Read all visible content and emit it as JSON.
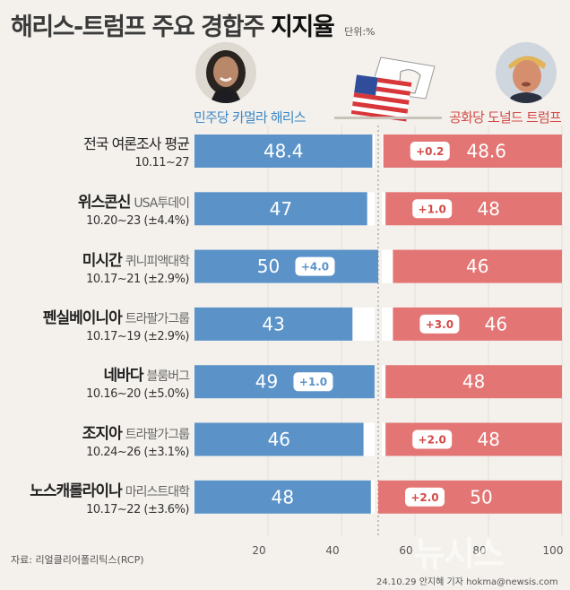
{
  "header": {
    "title_main": "해리스-트럼프 주요 경합주",
    "title_emphasis": "지지율",
    "unit": "단위:%"
  },
  "parties": {
    "left": "민주당 카멀라 해리스",
    "right": "공화당 도널드 트럼프"
  },
  "footer": {
    "source": "자료: 리얼클리어폴리틱스(RCP)",
    "credit": "24.10.29 안지혜 기자 hokma@newsis.com",
    "watermark": "뉴시스"
  },
  "colors": {
    "harris": "#5b93c9",
    "trump": "#e37674",
    "background": "#f4f1ec"
  },
  "chart_data": {
    "type": "bar",
    "x_ticks": [
      20,
      40,
      60,
      80,
      100
    ],
    "xlim": [
      0,
      100
    ],
    "rows": [
      {
        "name": "전국 여론조사 평균",
        "source": "",
        "dates": "10.11~27",
        "harris": 48.4,
        "trump": 48.6,
        "lead_side": "trump",
        "lead_label": "+0.2"
      },
      {
        "name": "위스콘신",
        "source": "USA투데이",
        "dates": "10.20~23 (±4.4%)",
        "harris": 47,
        "trump": 48,
        "lead_side": "trump",
        "lead_label": "+1.0"
      },
      {
        "name": "미시간",
        "source": "퀴니피액대학",
        "dates": "10.17~21 (±2.9%)",
        "harris": 50,
        "trump": 46,
        "lead_side": "harris",
        "lead_label": "+4.0"
      },
      {
        "name": "펜실베이니아",
        "source": "트라팔가그룹",
        "dates": "10.17~19 (±2.9%)",
        "harris": 43,
        "trump": 46,
        "lead_side": "trump",
        "lead_label": "+3.0"
      },
      {
        "name": "네바다",
        "source": "블룸버그",
        "dates": "10.16~20 (±5.0%)",
        "harris": 49,
        "trump": 48,
        "lead_side": "harris",
        "lead_label": "+1.0"
      },
      {
        "name": "조지아",
        "source": "트라팔가그룹",
        "dates": "10.24~26 (±3.1%)",
        "harris": 46,
        "trump": 48,
        "lead_side": "trump",
        "lead_label": "+2.0"
      },
      {
        "name": "노스캐롤라이나",
        "source": "마리스트대학",
        "dates": "10.17~22 (±3.6%)",
        "harris": 48,
        "trump": 50,
        "lead_side": "trump",
        "lead_label": "+2.0"
      }
    ]
  }
}
